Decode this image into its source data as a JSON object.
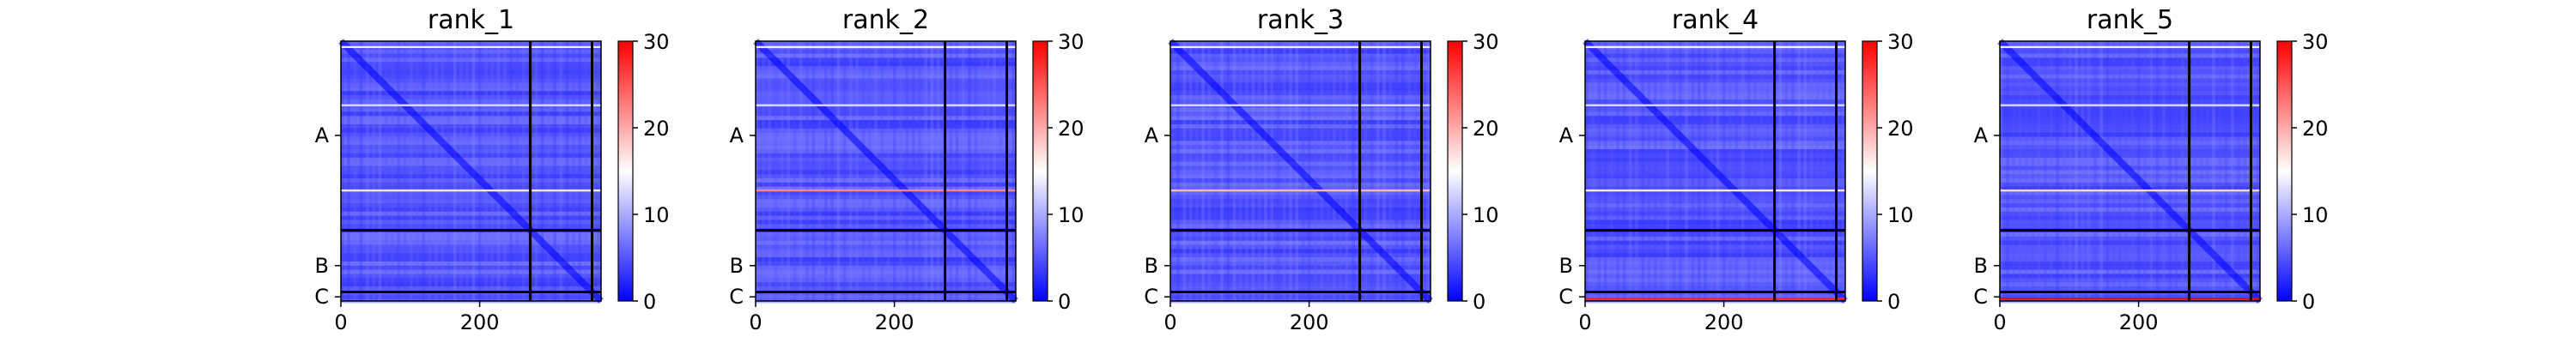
{
  "figure": {
    "panels": [
      {
        "title": "rank_1"
      },
      {
        "title": "rank_2"
      },
      {
        "title": "rank_3"
      },
      {
        "title": "rank_4"
      },
      {
        "title": "rank_5"
      }
    ],
    "colormap": "bwr",
    "colors": {
      "low": "#0000ff",
      "mid": "#ffffff",
      "high": "#ff0000",
      "frame": "#000000"
    }
  },
  "chart_data": [
    {
      "type": "heatmap",
      "title": "rank_1",
      "matrix_size": 375,
      "xlim": [
        0,
        375
      ],
      "x_ticks": [
        0,
        200
      ],
      "y_ticks": [
        {
          "label": "A",
          "position": 136
        },
        {
          "label": "B",
          "position": 324
        },
        {
          "label": "C",
          "position": 369
        }
      ],
      "chain_boundaries": [
        273,
        362
      ],
      "colorbar": {
        "range": [
          0,
          30
        ],
        "ticks": [
          0,
          10,
          20,
          30
        ]
      },
      "notable_rows": [
        {
          "row": 8,
          "level": 16
        },
        {
          "row": 92,
          "level": 13
        },
        {
          "row": 215,
          "level": 16
        }
      ]
    },
    {
      "type": "heatmap",
      "title": "rank_2",
      "matrix_size": 375,
      "xlim": [
        0,
        375
      ],
      "x_ticks": [
        0,
        200
      ],
      "y_ticks": [
        {
          "label": "A",
          "position": 136
        },
        {
          "label": "B",
          "position": 324
        },
        {
          "label": "C",
          "position": 369
        }
      ],
      "chain_boundaries": [
        273,
        362
      ],
      "colorbar": {
        "range": [
          0,
          30
        ],
        "ticks": [
          0,
          10,
          20,
          30
        ]
      },
      "notable_rows": [
        {
          "row": 8,
          "level": 16
        },
        {
          "row": 92,
          "level": 13
        },
        {
          "row": 215,
          "level": 22
        }
      ]
    },
    {
      "type": "heatmap",
      "title": "rank_3",
      "matrix_size": 375,
      "xlim": [
        0,
        375
      ],
      "x_ticks": [
        0,
        200
      ],
      "y_ticks": [
        {
          "label": "A",
          "position": 136
        },
        {
          "label": "B",
          "position": 324
        },
        {
          "label": "C",
          "position": 369
        }
      ],
      "chain_boundaries": [
        273,
        362
      ],
      "colorbar": {
        "range": [
          0,
          30
        ],
        "ticks": [
          0,
          10,
          20,
          30
        ]
      },
      "notable_rows": [
        {
          "row": 8,
          "level": 16
        },
        {
          "row": 92,
          "level": 13
        },
        {
          "row": 215,
          "level": 19
        }
      ]
    },
    {
      "type": "heatmap",
      "title": "rank_4",
      "matrix_size": 375,
      "xlim": [
        0,
        375
      ],
      "x_ticks": [
        0,
        200
      ],
      "y_ticks": [
        {
          "label": "A",
          "position": 136
        },
        {
          "label": "B",
          "position": 324
        },
        {
          "label": "C",
          "position": 369
        }
      ],
      "chain_boundaries": [
        273,
        362
      ],
      "colorbar": {
        "range": [
          0,
          30
        ],
        "ticks": [
          0,
          10,
          20,
          30
        ]
      },
      "notable_rows": [
        {
          "row": 8,
          "level": 16
        },
        {
          "row": 92,
          "level": 13
        },
        {
          "row": 215,
          "level": 16
        },
        {
          "row": 371,
          "level": 28
        }
      ]
    },
    {
      "type": "heatmap",
      "title": "rank_5",
      "matrix_size": 375,
      "xlim": [
        0,
        375
      ],
      "x_ticks": [
        0,
        200
      ],
      "y_ticks": [
        {
          "label": "A",
          "position": 136
        },
        {
          "label": "B",
          "position": 324
        },
        {
          "label": "C",
          "position": 369
        }
      ],
      "chain_boundaries": [
        273,
        362
      ],
      "colorbar": {
        "range": [
          0,
          30
        ],
        "ticks": [
          0,
          10,
          20,
          30
        ]
      },
      "notable_rows": [
        {
          "row": 8,
          "level": 16
        },
        {
          "row": 92,
          "level": 13
        },
        {
          "row": 215,
          "level": 17
        },
        {
          "row": 371,
          "level": 30
        }
      ]
    }
  ]
}
